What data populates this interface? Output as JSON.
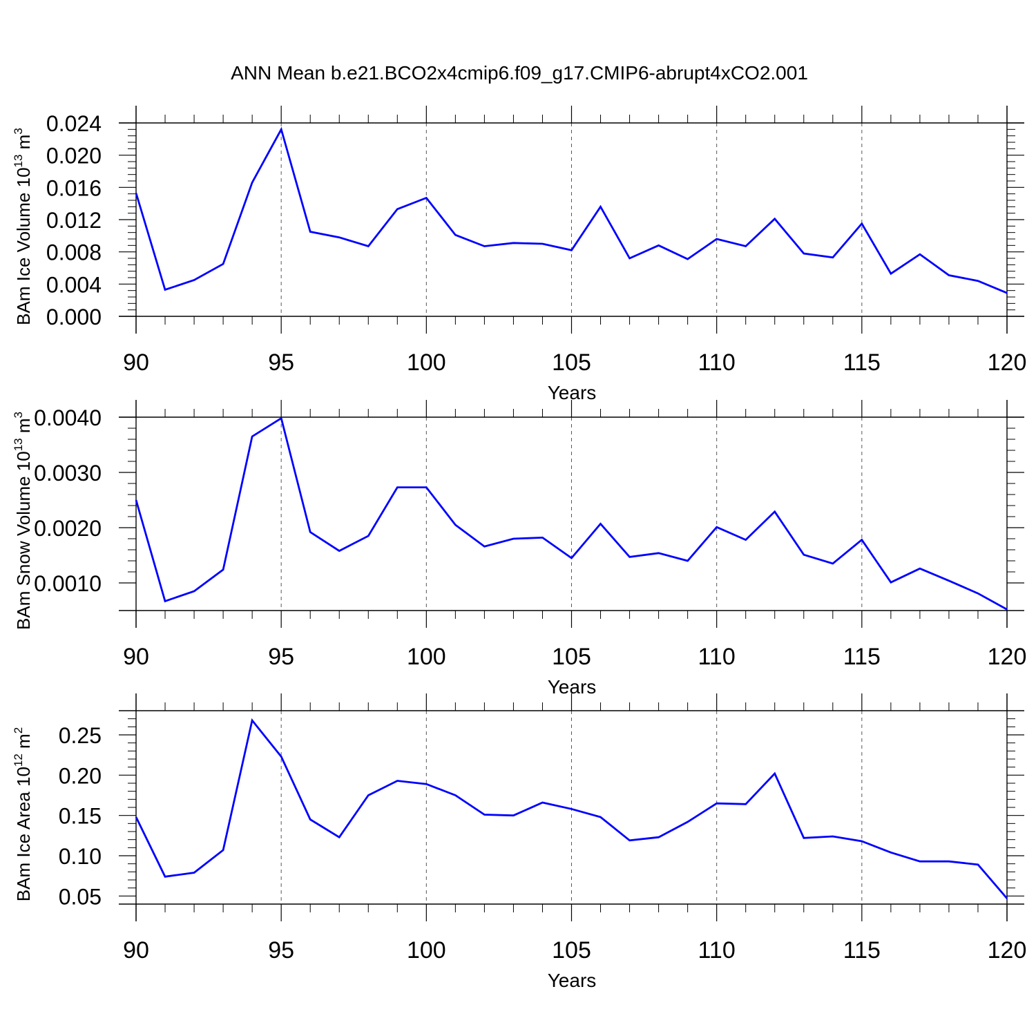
{
  "title": "ANN Mean b.e21.BCO2x4cmip6.f09_g17.CMIP6-abrupt4xCO2.001",
  "colors": {
    "series": "#0000ff",
    "axis": "#000000",
    "grid": "#555555"
  },
  "chart_data": [
    {
      "type": "line",
      "ylabel_main": "BAm Ice Volume 10",
      "ylabel_exp": "13",
      "ylabel_unit": " m",
      "ylabel_unit_exp": "3",
      "xlabel": "Years",
      "xlim": [
        90,
        120
      ],
      "ylim": [
        0.0,
        0.024
      ],
      "yticks": [
        "0.000",
        "0.004",
        "0.008",
        "0.012",
        "0.016",
        "0.020",
        "0.024"
      ],
      "xticks": [
        "90",
        "95",
        "100",
        "105",
        "110",
        "115",
        "120"
      ],
      "x": [
        90,
        91,
        92,
        93,
        94,
        95,
        96,
        97,
        98,
        99,
        100,
        101,
        102,
        103,
        104,
        105,
        106,
        107,
        108,
        109,
        110,
        111,
        112,
        113,
        114,
        115,
        116,
        117,
        118,
        119,
        120
      ],
      "values": [
        0.0153,
        0.0033,
        0.0045,
        0.0065,
        0.0166,
        0.0232,
        0.0105,
        0.0098,
        0.0087,
        0.0133,
        0.0147,
        0.0101,
        0.0087,
        0.0091,
        0.009,
        0.0082,
        0.0136,
        0.0072,
        0.0088,
        0.0071,
        0.0096,
        0.0087,
        0.0121,
        0.0078,
        0.0073,
        0.0115,
        0.0053,
        0.0077,
        0.0051,
        0.0044,
        0.0029
      ]
    },
    {
      "type": "line",
      "ylabel_main": "BAm Snow Volume 10",
      "ylabel_exp": "13",
      "ylabel_unit": " m",
      "ylabel_unit_exp": "3",
      "xlabel": "Years",
      "xlim": [
        90,
        120
      ],
      "ylim": [
        0.0005,
        0.004
      ],
      "yticks": [
        "0.0010",
        "0.0020",
        "0.0030",
        "0.0040"
      ],
      "xticks": [
        "90",
        "95",
        "100",
        "105",
        "110",
        "115",
        "120"
      ],
      "x": [
        90,
        91,
        92,
        93,
        94,
        95,
        96,
        97,
        98,
        99,
        100,
        101,
        102,
        103,
        104,
        105,
        106,
        107,
        108,
        109,
        110,
        111,
        112,
        113,
        114,
        115,
        116,
        117,
        118,
        119,
        120
      ],
      "values": [
        0.0025,
        0.00067,
        0.00085,
        0.00124,
        0.00365,
        0.00398,
        0.00192,
        0.00158,
        0.00185,
        0.00273,
        0.00273,
        0.00205,
        0.00166,
        0.0018,
        0.00182,
        0.00145,
        0.00207,
        0.00147,
        0.00154,
        0.0014,
        0.00201,
        0.00178,
        0.00229,
        0.00151,
        0.00135,
        0.00178,
        0.00101,
        0.00126,
        0.00104,
        0.00081,
        0.00052
      ]
    },
    {
      "type": "line",
      "ylabel_main": "BAm Ice Area 10",
      "ylabel_exp": "12",
      "ylabel_unit": " m",
      "ylabel_unit_exp": "2",
      "xlabel": "Years",
      "xlim": [
        90,
        120
      ],
      "ylim": [
        0.04,
        0.28
      ],
      "yticks": [
        "0.05",
        "0.10",
        "0.15",
        "0.20",
        "0.25"
      ],
      "xticks": [
        "90",
        "95",
        "100",
        "105",
        "110",
        "115",
        "120"
      ],
      "x": [
        90,
        91,
        92,
        93,
        94,
        95,
        96,
        97,
        98,
        99,
        100,
        101,
        102,
        103,
        104,
        105,
        106,
        107,
        108,
        109,
        110,
        111,
        112,
        113,
        114,
        115,
        116,
        117,
        118,
        119,
        120
      ],
      "values": [
        0.148,
        0.074,
        0.079,
        0.107,
        0.268,
        0.223,
        0.145,
        0.123,
        0.175,
        0.193,
        0.189,
        0.175,
        0.151,
        0.15,
        0.166,
        0.158,
        0.148,
        0.119,
        0.123,
        0.142,
        0.165,
        0.164,
        0.202,
        0.122,
        0.124,
        0.118,
        0.104,
        0.093,
        0.093,
        0.089,
        0.047
      ]
    }
  ]
}
